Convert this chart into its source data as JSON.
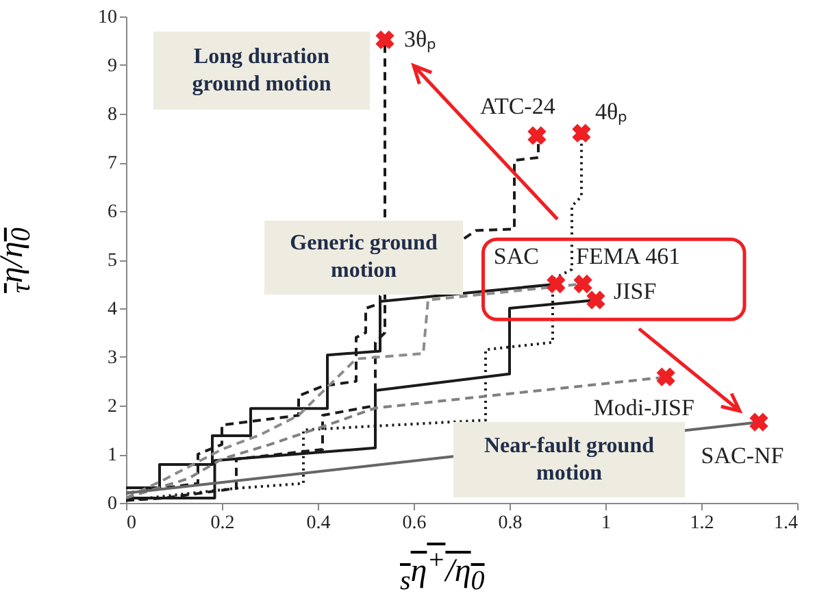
{
  "chart_data": {
    "type": "line",
    "xlabel": "$_{s}$η$^{+}$/η$_{0}$",
    "ylabel": "$_{τ}$η/η$_{0}$",
    "xlim": [
      0,
      1.4
    ],
    "ylim": [
      0,
      10
    ],
    "xticks": [
      0,
      0.2,
      0.4,
      0.6,
      0.8,
      1,
      1.2,
      1.4
    ],
    "yticks": [
      0,
      1,
      2,
      3,
      4,
      5,
      6,
      7,
      8,
      9,
      10
    ],
    "grid": false,
    "series": [
      {
        "color": "#1a1a1a",
        "line_style": "dashed",
        "marker": "none",
        "x": [
          0,
          0.08,
          0.23,
          0.23,
          0.41,
          0.41,
          0.52,
          0.52,
          0.54,
          0.54
        ],
        "values": [
          0.05,
          0.1,
          0.3,
          0.9,
          1.1,
          1.8,
          2.0,
          3.3,
          3.5,
          9.52
        ]
      },
      {
        "color": "#1a1a1a",
        "line_style": "dashed",
        "marker": "none",
        "x": [
          0,
          0.15,
          0.15,
          0.2,
          0.2,
          0.36,
          0.36,
          0.41,
          0.48,
          0.48,
          0.5,
          0.5,
          0.53,
          0.53,
          0.73,
          0.81,
          0.81,
          0.86,
          0.86
        ],
        "values": [
          0.2,
          0.4,
          1.0,
          1.2,
          1.6,
          1.8,
          2.2,
          2.4,
          2.5,
          3.4,
          3.5,
          4.0,
          4.1,
          4.25,
          5.6,
          5.63,
          7.04,
          7.1,
          7.55
        ]
      },
      {
        "color": "#1a1a1a",
        "line_style": "dotted",
        "marker": "none",
        "x": [
          0,
          0.23,
          0.37,
          0.37,
          0.75,
          0.75,
          0.89,
          0.89,
          0.93,
          0.93,
          0.95,
          0.95
        ],
        "values": [
          0.05,
          0.3,
          0.4,
          1.5,
          1.7,
          3.15,
          3.3,
          4.6,
          4.8,
          6.1,
          6.3,
          7.6
        ]
      },
      {
        "color": "#1a1a1a",
        "line_style": "solid",
        "marker": "none",
        "x": [
          0,
          0.07,
          0.07,
          0.18,
          0.18,
          0.26,
          0.26,
          0.42,
          0.42,
          0.53,
          0.53,
          0.9
        ],
        "values": [
          0.31,
          0.31,
          0.79,
          0.79,
          1.38,
          1.38,
          1.94,
          1.94,
          3.04,
          3.12,
          4.14,
          4.5
        ]
      },
      {
        "color": "#8c8c8c",
        "line_style": "dashed",
        "marker": "none",
        "x": [
          0,
          0.08,
          0.2,
          0.28,
          0.36,
          0.48,
          0.62,
          0.63,
          0.95
        ],
        "values": [
          0.1,
          0.48,
          1.1,
          1.4,
          1.8,
          2.96,
          3.07,
          4.17,
          4.5
        ]
      },
      {
        "color": "#1a1a1a",
        "line_style": "solid",
        "marker": "none",
        "x": [
          0,
          0.185,
          0.185,
          0.52,
          0.52,
          0.8,
          0.8,
          0.98
        ],
        "values": [
          0.1,
          0.1,
          0.87,
          1.13,
          2.31,
          2.65,
          4.0,
          4.17
        ]
      },
      {
        "color": "#808080",
        "line_style": "dashed",
        "marker": "none",
        "x": [
          0,
          0.13,
          0.2,
          0.3,
          0.42,
          0.52,
          1.13
        ],
        "values": [
          0.1,
          0.5,
          0.9,
          1.2,
          1.6,
          1.95,
          2.59
        ]
      },
      {
        "color": "#666666",
        "line_style": "solid",
        "marker": "none",
        "x": [
          0,
          1.32
        ],
        "values": [
          0.2,
          1.66
        ]
      },
      {
        "type": "scatter",
        "color": "#ee2024",
        "marker": "cross",
        "x": [
          0.54,
          0.857,
          0.95,
          0.897,
          0.953,
          0.98,
          1.126,
          1.32
        ],
        "values": [
          9.52,
          7.55,
          7.6,
          4.5,
          4.5,
          4.17,
          2.59,
          1.66
        ]
      }
    ],
    "annotations": [
      {
        "text": "3θₚ",
        "x": 0.54,
        "y": 9.52
      },
      {
        "text": "ATC-24",
        "x": 0.857,
        "y": 7.55
      },
      {
        "text": "4θₚ",
        "x": 0.95,
        "y": 7.6
      },
      {
        "text": "SAC",
        "x": 0.897,
        "y": 4.5
      },
      {
        "text": "FEMA 461",
        "x": 0.953,
        "y": 4.5
      },
      {
        "text": "JISF",
        "x": 0.98,
        "y": 4.17
      },
      {
        "text": "Modi-JISF",
        "x": 1.126,
        "y": 2.59
      },
      {
        "text": "SAC-NF",
        "x": 1.32,
        "y": 1.66
      },
      "Long duration ground motion",
      "Generic ground motion",
      "Near-fault ground motion"
    ]
  }
}
